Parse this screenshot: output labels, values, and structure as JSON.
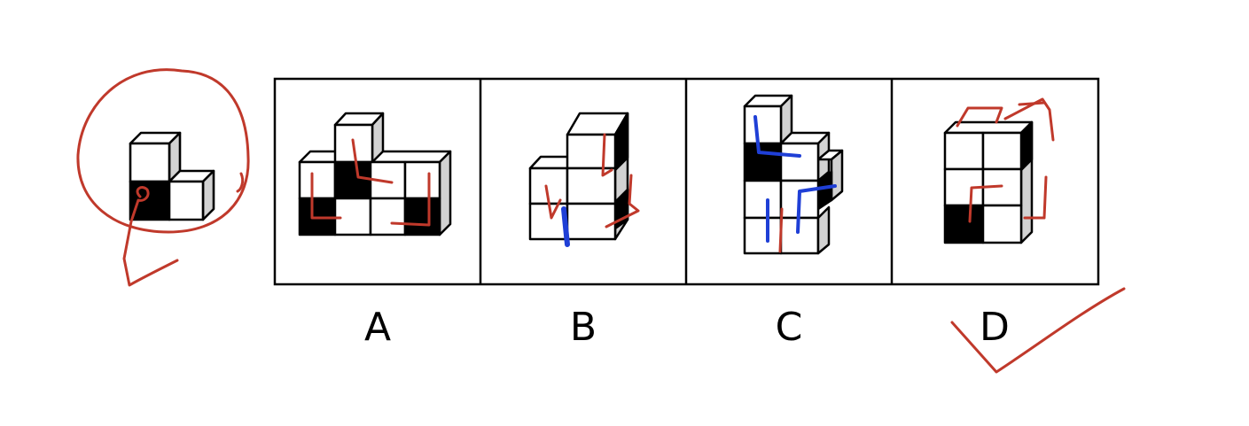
{
  "puzzle": {
    "options": [
      {
        "label": "A"
      },
      {
        "label": "B"
      },
      {
        "label": "C"
      },
      {
        "label": "D"
      }
    ],
    "answer": "D"
  },
  "colors": {
    "ink": "#000000",
    "face": "#ffffff",
    "shade": "#d2d2d2",
    "dark_face": "#000000",
    "annotation_red": "#c0392b",
    "annotation_blue": "#1f3fd6"
  },
  "icons": {
    "reference": "l-shaped-cube-stack-icon",
    "circle": "hand-drawn-circle-icon",
    "check": "hand-drawn-check-mark-icon"
  }
}
